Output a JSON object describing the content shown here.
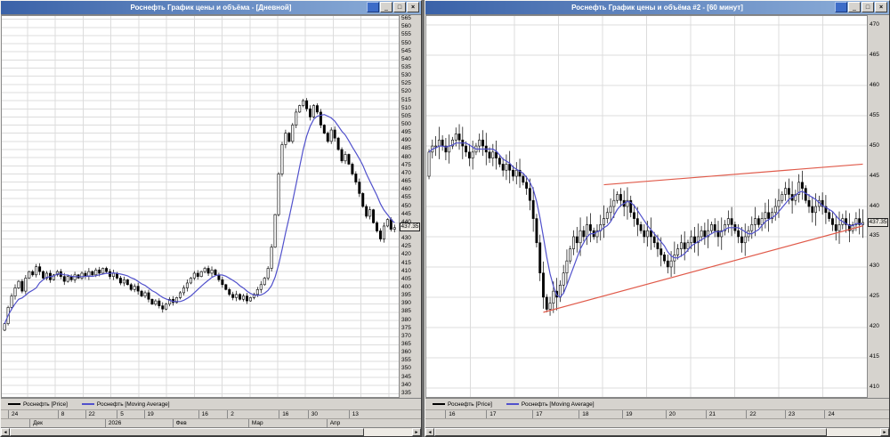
{
  "ui": {
    "buttons": {
      "minimize": "_",
      "maximize": "□",
      "close": "×"
    },
    "scrollbar": {
      "left": "◄",
      "right": "►"
    }
  },
  "windows": [
    {
      "title": "Роснефть График цены и объёма - [Дневной]",
      "legend": [
        {
          "label": "Роснефть [Price]",
          "color": "#000000"
        },
        {
          "label": "Роснефть [Moving Average]",
          "color": "#5151cc"
        }
      ],
      "price_axis": {
        "domain": [
          333,
          567
        ],
        "labels": [
          565,
          560,
          555,
          550,
          545,
          540,
          535,
          530,
          525,
          520,
          515,
          510,
          505,
          500,
          495,
          490,
          485,
          480,
          475,
          470,
          465,
          460,
          455,
          450,
          445,
          440,
          435,
          430,
          425,
          420,
          415,
          410,
          405,
          400,
          395,
          390,
          385,
          380,
          375,
          370,
          365,
          360,
          355,
          350,
          345,
          340,
          335
        ],
        "badge": "437.35",
        "badge_price": 437.35
      },
      "xaxis": {
        "row1": [
          {
            "t": "24",
            "f": 0.018
          },
          {
            "t": "8",
            "f": 0.143
          },
          {
            "t": "22",
            "f": 0.212
          },
          {
            "t": "5",
            "f": 0.292
          },
          {
            "t": "19",
            "f": 0.36
          },
          {
            "t": "16",
            "f": 0.497
          },
          {
            "t": "2",
            "f": 0.57
          },
          {
            "t": "16",
            "f": 0.7
          },
          {
            "t": "30",
            "f": 0.773
          },
          {
            "t": "13",
            "f": 0.876
          }
        ],
        "row2": [
          {
            "t": "Дек",
            "f": 0.072
          },
          {
            "t": "2026",
            "f": 0.262
          },
          {
            "t": "Фев",
            "f": 0.432
          },
          {
            "t": "Мар",
            "f": 0.623
          },
          {
            "t": "Апр",
            "f": 0.82
          }
        ]
      },
      "chart": {
        "type": "candlestick",
        "interval": "Дневной",
        "closes": [
          378,
          388,
          395,
          400,
          404,
          398,
          406,
          410,
          408,
          413,
          410,
          406,
          409,
          405,
          408,
          410,
          407,
          404,
          407,
          405,
          408,
          406,
          409,
          407,
          410,
          408,
          411,
          409,
          412,
          410,
          407,
          409,
          406,
          403,
          405,
          402,
          399,
          401,
          398,
          395,
          397,
          393,
          390,
          392,
          389,
          387,
          390,
          393,
          391,
          394,
          397,
          400,
          403,
          406,
          409,
          407,
          410,
          412,
          409,
          411,
          408,
          405,
          402,
          399,
          396,
          394,
          396,
          393,
          395,
          392,
          394,
          396,
          399,
          402,
          406,
          412,
          425,
          445,
          470,
          488,
          495,
          490,
          500,
          508,
          512,
          515,
          510,
          505,
          512,
          508,
          500,
          495,
          490,
          497,
          492,
          485,
          478,
          482,
          476,
          470,
          465,
          458,
          450,
          444,
          448,
          440,
          435,
          430,
          438,
          442,
          436,
          437
        ],
        "ma_window": 10,
        "grid_step": 5,
        "grid_x": [
          0.065,
          0.135,
          0.205,
          0.275,
          0.345,
          0.415,
          0.485,
          0.555,
          0.625,
          0.695,
          0.765,
          0.835,
          0.905,
          0.975
        ],
        "trendlines": [],
        "colors": {
          "candle": "#000000",
          "ma": "#5151cc",
          "trend": "#e05a4a",
          "grid": "#dcdcdc"
        }
      }
    },
    {
      "title": "Роснефть График цены и объёма #2 - [60 минут]",
      "legend": [
        {
          "label": "Роснефть [Price]",
          "color": "#000000"
        },
        {
          "label": "Роснефть [Moving Average]",
          "color": "#5151cc"
        }
      ],
      "price_axis": {
        "domain": [
          408.5,
          471.5
        ],
        "labels": [
          470,
          465,
          460,
          455,
          450,
          445,
          440,
          435,
          430,
          425,
          420,
          415,
          410
        ],
        "badge": "437.35",
        "badge_price": 437.35
      },
      "xaxis": {
        "row1": [
          {
            "t": "16",
            "f": 0.045
          },
          {
            "t": "17",
            "f": 0.138
          },
          {
            "t": "17",
            "f": 0.243
          },
          {
            "t": "18",
            "f": 0.348
          },
          {
            "t": "19",
            "f": 0.447
          },
          {
            "t": "20",
            "f": 0.545
          },
          {
            "t": "21",
            "f": 0.636
          },
          {
            "t": "22",
            "f": 0.728
          },
          {
            "t": "23",
            "f": 0.816
          },
          {
            "t": "24",
            "f": 0.906
          }
        ],
        "row2": []
      },
      "chart": {
        "type": "candlestick",
        "interval": "60 минут",
        "closes": [
          449,
          450,
          450,
          451,
          450,
          449,
          450,
          451,
          452,
          451,
          450,
          449,
          448,
          449,
          450,
          451,
          450,
          449,
          448,
          449,
          448,
          447,
          446,
          447,
          446,
          445,
          446,
          445,
          444,
          443,
          441,
          438,
          434,
          429,
          425,
          423,
          424,
          426,
          425,
          427,
          429,
          431,
          433,
          435,
          434,
          436,
          435,
          437,
          436,
          435,
          436,
          437,
          438,
          439,
          440,
          441,
          442,
          441,
          440,
          441,
          439,
          438,
          437,
          436,
          435,
          436,
          435,
          434,
          433,
          432,
          431,
          430,
          431,
          432,
          433,
          434,
          433,
          434,
          435,
          434,
          435,
          436,
          435,
          436,
          437,
          436,
          435,
          436,
          437,
          438,
          437,
          436,
          435,
          434,
          435,
          436,
          437,
          438,
          437,
          438,
          439,
          438,
          439,
          440,
          441,
          442,
          443,
          442,
          441,
          442,
          444,
          443,
          441,
          440,
          439,
          440,
          441,
          440,
          439,
          438,
          437,
          436,
          437,
          438,
          437,
          436,
          437,
          438,
          437,
          437.35
        ],
        "ma_window": 6,
        "grid_step": 5,
        "grid_x": [
          0.1,
          0.2,
          0.3,
          0.4,
          0.5,
          0.6,
          0.7,
          0.8,
          0.9
        ],
        "trendlines": [
          {
            "i1": 34,
            "p1": 422.5,
            "i2": 129,
            "p2": 436.8
          },
          {
            "i1": 52,
            "p1": 443.6,
            "i2": 129,
            "p2": 447.0
          }
        ],
        "colors": {
          "candle": "#000000",
          "ma": "#5151cc",
          "trend": "#e05a4a",
          "grid": "#dcdcdc"
        }
      }
    }
  ]
}
